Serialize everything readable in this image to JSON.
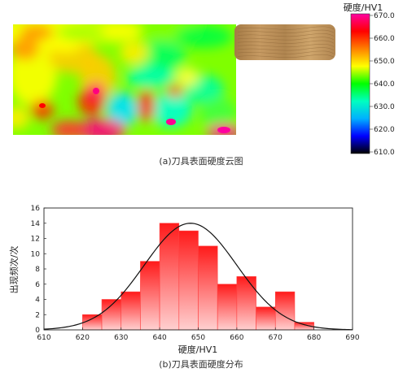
{
  "chart_data": [
    {
      "type": "heatmap",
      "caption": "(a)刀具表面硬度云图",
      "colorbar": {
        "title": "硬度/HV1",
        "range": [
          610.0,
          670.0
        ],
        "ticks": [
          "670.0",
          "660.0",
          "650.0",
          "640.0",
          "630.0",
          "620.0",
          "610.0"
        ],
        "colors": [
          "#ff00a0",
          "#ff0000",
          "#ff8000",
          "#ffff00",
          "#00ff00",
          "#00ffc0",
          "#00b0ff",
          "#0000ff",
          "#000000"
        ]
      },
      "blade_color": "#ff40a0",
      "handle_color": "#b48a55"
    },
    {
      "type": "bar",
      "caption": "(b)刀具表面硬度分布",
      "xlabel": "硬度/HV1",
      "ylabel": "出现频次/次",
      "xlim": [
        610,
        690
      ],
      "ylim": [
        0,
        16
      ],
      "xticks": [
        610,
        620,
        630,
        640,
        650,
        660,
        670,
        680,
        690
      ],
      "yticks": [
        0,
        2,
        4,
        6,
        8,
        10,
        12,
        14,
        16
      ],
      "bin_width": 5,
      "bins": [
        {
          "x": 620,
          "value": 2
        },
        {
          "x": 625,
          "value": 4
        },
        {
          "x": 630,
          "value": 5
        },
        {
          "x": 635,
          "value": 9
        },
        {
          "x": 640,
          "value": 14
        },
        {
          "x": 645,
          "value": 13
        },
        {
          "x": 650,
          "value": 11
        },
        {
          "x": 655,
          "value": 6
        },
        {
          "x": 660,
          "value": 7
        },
        {
          "x": 665,
          "value": 3
        },
        {
          "x": 670,
          "value": 5
        },
        {
          "x": 675,
          "value": 1
        }
      ],
      "fit_curve": {
        "type": "normal",
        "mean": 648,
        "peak": 14,
        "sd": 12
      },
      "bar_color": "#ff2020",
      "grid": false
    }
  ]
}
